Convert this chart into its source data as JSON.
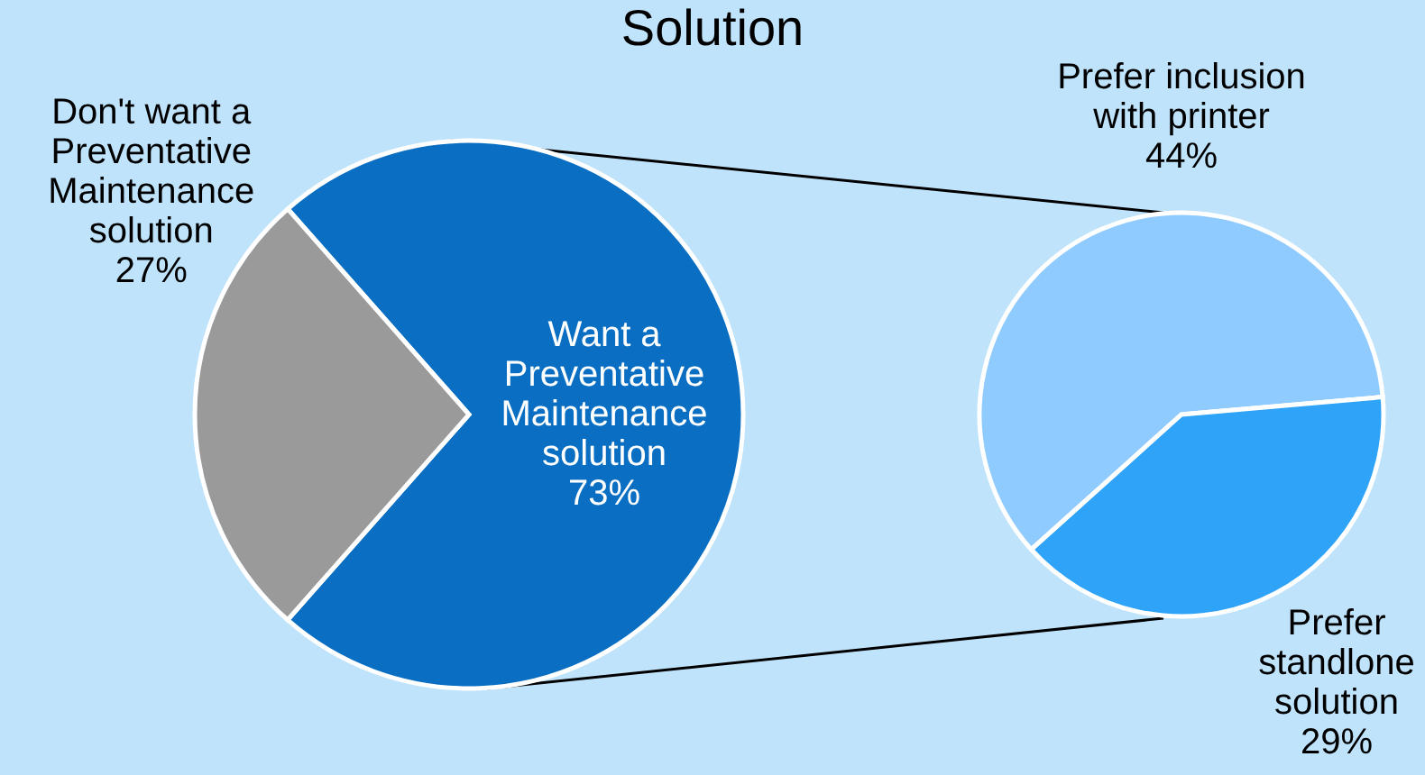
{
  "chart_data": [
    {
      "type": "pie",
      "title": "Solution",
      "categories": [
        "Want a Preventative Maintenance solution",
        "Don't want a Preventative Maintenance solution"
      ],
      "values": [
        73,
        27
      ],
      "colors": [
        "#0a6fc2",
        "#9a9a9a"
      ],
      "value_labels": [
        "73%",
        "27%"
      ]
    },
    {
      "type": "pie",
      "categories": [
        "Prefer inclusion with printer",
        "Prefer standlone solution"
      ],
      "values": [
        44,
        29
      ],
      "colors": [
        "#8fcbff",
        "#2fa3f7"
      ],
      "value_labels": [
        "44%",
        "29%"
      ]
    }
  ]
}
